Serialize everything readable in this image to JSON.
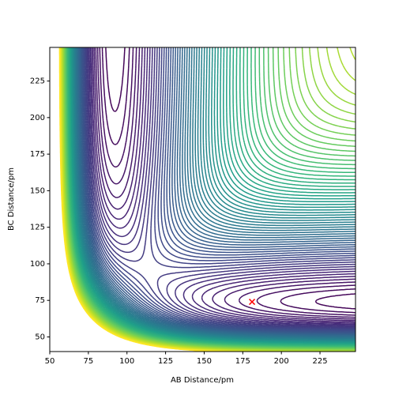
{
  "chart_data": {
    "type": "contour",
    "x_label": "AB Distance/pm",
    "y_label": "BC Distance/pm",
    "xlim": [
      50,
      248
    ],
    "ylim": [
      40,
      248
    ],
    "xticks": [
      50,
      75,
      100,
      125,
      150,
      175,
      200,
      225
    ],
    "yticks": [
      50,
      75,
      100,
      125,
      150,
      175,
      200,
      225
    ],
    "points": {
      "x": [
        181
      ],
      "y": [
        74
      ],
      "color": "red",
      "marker": "x"
    }
  }
}
